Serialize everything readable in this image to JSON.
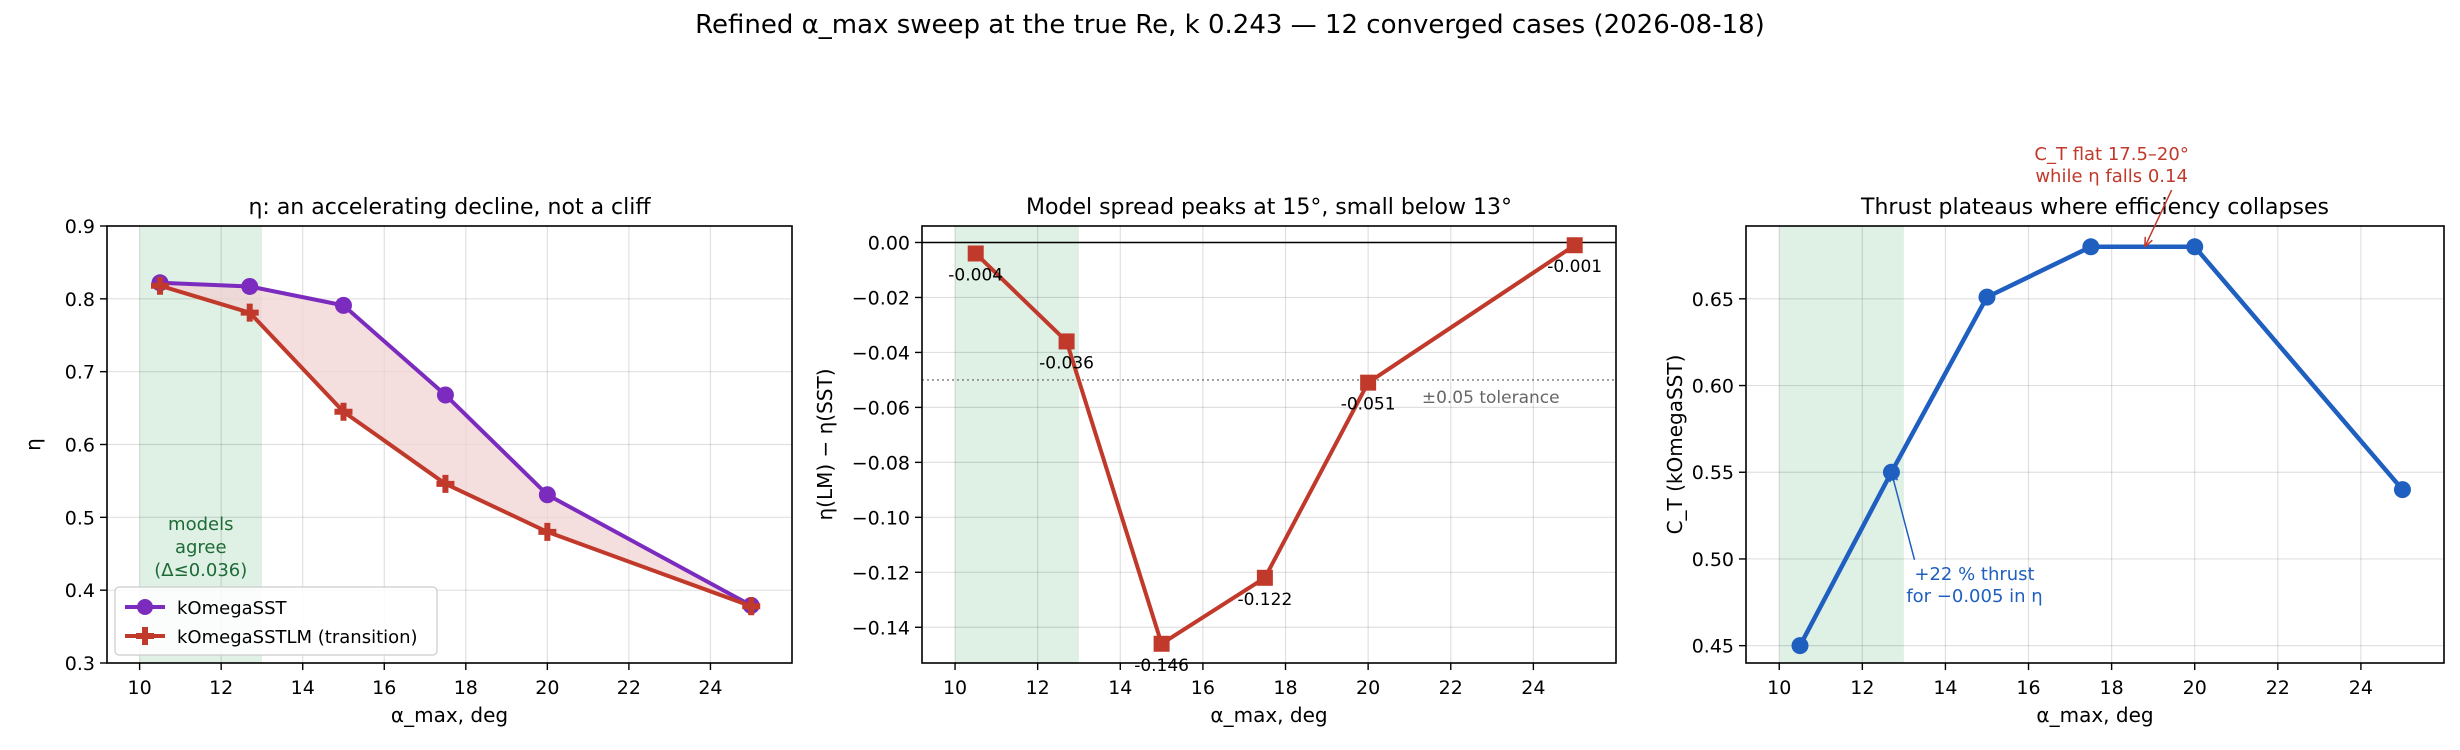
{
  "figure": {
    "suptitle": "Refined α_max sweep at the true Re, k 0.243 — 12 converged cases (2026-08-18)"
  },
  "colors": {
    "sst": "#7b2cbf",
    "lm": "#c0392b",
    "thrust": "#1f5fbf",
    "band": "#dff0e5",
    "band_text": "#1e6b35",
    "fill": "#f2d3d3",
    "tolerance": "#666666"
  },
  "chart_data": [
    {
      "type": "line",
      "title": "η: an accelerating decline, not a cliff",
      "xlabel": "α_max, deg",
      "ylabel": "η",
      "xlim": [
        9.2,
        26.0
      ],
      "ylim": [
        0.3,
        0.9
      ],
      "xticks": [
        10,
        12,
        14,
        16,
        18,
        20,
        22,
        24
      ],
      "yticks": [
        0.3,
        0.4,
        0.5,
        0.6,
        0.7,
        0.8,
        0.9
      ],
      "grid": true,
      "legend_position": "lower-left",
      "shaded_band": {
        "from": 10,
        "to": 13,
        "label": [
          "models",
          "agree",
          "(Δ≤0.036)"
        ]
      },
      "series": [
        {
          "name": "kOmegaSST",
          "marker": "circle",
          "x": [
            10.5,
            12.7,
            15,
            17.5,
            20,
            25
          ],
          "y": [
            0.822,
            0.817,
            0.791,
            0.668,
            0.531,
            0.379
          ]
        },
        {
          "name": "kOmegaSSTLM (transition)",
          "marker": "plus",
          "x": [
            10.5,
            12.7,
            15,
            17.5,
            20,
            25
          ],
          "y": [
            0.818,
            0.781,
            0.645,
            0.546,
            0.48,
            0.378
          ]
        }
      ]
    },
    {
      "type": "line",
      "title": "Model spread peaks at 15°, small below 13°",
      "xlabel": "α_max, deg",
      "ylabel": "η(LM) − η(SST)",
      "xlim": [
        9.2,
        26.0
      ],
      "ylim": [
        -0.153,
        0.006
      ],
      "xticks": [
        10,
        12,
        14,
        16,
        18,
        20,
        22,
        24
      ],
      "yticks": [
        0.0,
        -0.02,
        -0.04,
        -0.06,
        -0.08,
        -0.1,
        -0.12,
        -0.14
      ],
      "ytick_labels": [
        "0.00",
        "−0.02",
        "−0.04",
        "−0.06",
        "−0.08",
        "−0.10",
        "−0.12",
        "−0.14"
      ],
      "grid": true,
      "shaded_band": {
        "from": 10,
        "to": 13
      },
      "zero_line": 0,
      "tolerance": {
        "y": -0.05,
        "label": "±0.05 tolerance"
      },
      "series": [
        {
          "name": "",
          "marker": "square",
          "x": [
            10.5,
            12.7,
            15,
            17.5,
            20,
            25
          ],
          "y": [
            -0.004,
            -0.036,
            -0.146,
            -0.122,
            -0.051,
            -0.001
          ],
          "labels": [
            "-0.004",
            "-0.036",
            "-0.146",
            "-0.122",
            "-0.051",
            "-0.001"
          ]
        }
      ]
    },
    {
      "type": "line",
      "title": "Thrust plateaus where efficiency collapses",
      "xlabel": "α_max, deg",
      "ylabel": "C_T (kOmegaSST)",
      "xlim": [
        9.2,
        26.0
      ],
      "ylim": [
        0.44,
        0.692
      ],
      "xticks": [
        10,
        12,
        14,
        16,
        18,
        20,
        22,
        24
      ],
      "yticks": [
        0.45,
        0.5,
        0.55,
        0.6,
        0.65
      ],
      "grid": true,
      "shaded_band": {
        "from": 10,
        "to": 13
      },
      "series": [
        {
          "name": "",
          "marker": "circle",
          "x": [
            10.5,
            12.7,
            15,
            17.5,
            20,
            25
          ],
          "y": [
            0.45,
            0.55,
            0.651,
            0.68,
            0.68,
            0.54
          ]
        }
      ],
      "annotations": [
        {
          "text": [
            "C_T flat 17.5–20°",
            "while η falls 0.14"
          ],
          "target": [
            18.8,
            0.68
          ],
          "text_at": [
            18.0,
            0.73
          ],
          "color": "red"
        },
        {
          "text": [
            "+22 % thrust",
            "for −0.005 in η"
          ],
          "target": [
            12.7,
            0.55
          ],
          "text_at": [
            14.7,
            0.488
          ],
          "color": "blue"
        }
      ]
    }
  ]
}
